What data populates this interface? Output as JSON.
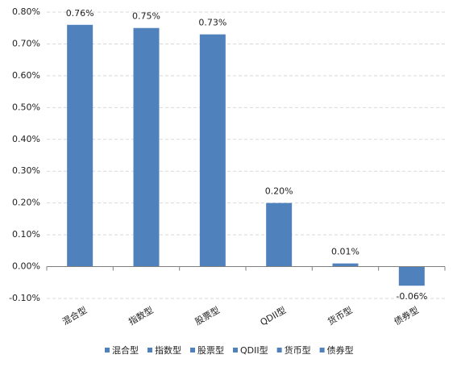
{
  "chart_data": {
    "type": "bar",
    "categories": [
      "混合型",
      "指数型",
      "股票型",
      "QDII型",
      "货币型",
      "债券型"
    ],
    "values": [
      0.76,
      0.75,
      0.73,
      0.2,
      0.01,
      -0.06
    ],
    "value_labels": [
      "0.76%",
      "0.75%",
      "0.73%",
      "0.20%",
      "0.01%",
      "-0.06%"
    ],
    "color": "#4f81bd",
    "ylim": [
      -0.1,
      0.8
    ],
    "yticks": [
      {
        "value": -0.1,
        "label": "-0.10%"
      },
      {
        "value": 0,
        "label": "0.00%"
      },
      {
        "value": 0.1,
        "label": "0.10%"
      },
      {
        "value": 0.2,
        "label": "0.20%"
      },
      {
        "value": 0.3,
        "label": "0.30%"
      },
      {
        "value": 0.4,
        "label": "0.40%"
      },
      {
        "value": 0.5,
        "label": "0.50%"
      },
      {
        "value": 0.6,
        "label": "0.60%"
      },
      {
        "value": 0.7,
        "label": "0.70%"
      },
      {
        "value": 0.8,
        "label": "0.80%"
      }
    ],
    "grid": true,
    "legend": "bottom"
  }
}
